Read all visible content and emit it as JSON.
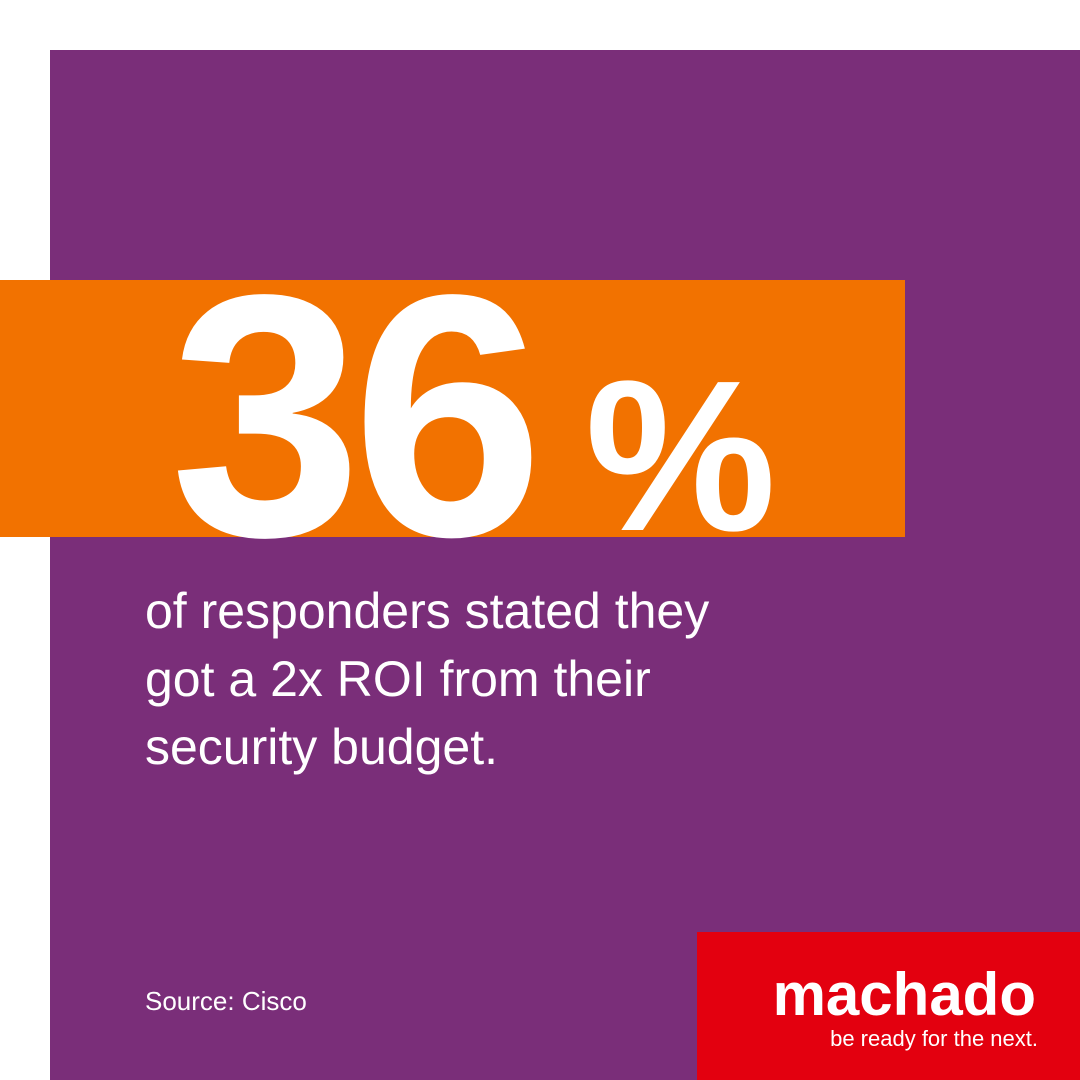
{
  "stat": {
    "number": "36",
    "unit": "%"
  },
  "description": [
    "of responders stated they",
    "got a 2x ROI from their",
    "security budget."
  ],
  "source": "Source: Cisco",
  "brand": {
    "name": "machado",
    "tagline": "be ready for the next."
  }
}
